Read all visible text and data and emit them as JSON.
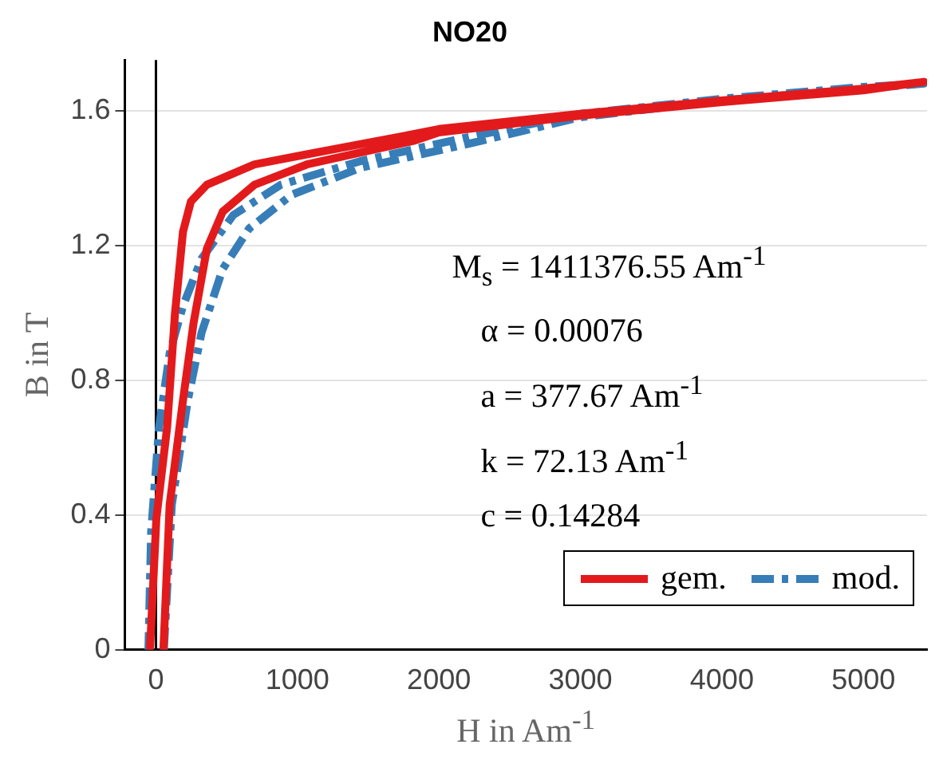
{
  "chart_data": {
    "type": "line",
    "title": "NO20",
    "xlabel": "H in Am$^{-1}$",
    "ylabel": "B in T",
    "xlim": [
      -220,
      5450
    ],
    "xticks": [
      0,
      1000,
      2000,
      3000,
      4000,
      5000
    ],
    "ylim": [
      0,
      1.75
    ],
    "yticks": [
      0,
      0.4,
      0.8,
      1.2,
      1.6
    ],
    "grid": "y",
    "legend": "bottom right",
    "marker": "none",
    "ref_lines": [
      {
        "axis": "x",
        "value": 0,
        "color": "#000000"
      }
    ],
    "annotations": [
      "M$_{s}$ = 1411376.55 Am$^{-1}$",
      "α = 0.00076",
      "a = 377.67 Am$^{-1}$",
      "k = 72.13 Am$^{-1}$",
      "c = 0.14284"
    ],
    "series": [
      {
        "name": "gem.",
        "color": "#e31a1c",
        "line_style": "solid",
        "x": [
          53,
          97,
          191,
          266,
          360,
          472,
          697,
          1067,
          1820,
          2000,
          3000,
          4000,
          5000,
          5430,
          5000,
          4000,
          3000,
          2000,
          1820,
          1067,
          697,
          360,
          247,
          191,
          135,
          79,
          3,
          -42
        ],
        "values": [
          0,
          0.43,
          0.74,
          0.97,
          1.19,
          1.3,
          1.38,
          1.44,
          1.51,
          1.535,
          1.585,
          1.625,
          1.66,
          1.685,
          1.665,
          1.63,
          1.59,
          1.545,
          1.53,
          1.47,
          1.44,
          1.38,
          1.33,
          1.24,
          1.0,
          0.66,
          0.39,
          0
        ]
      },
      {
        "name": "mod.",
        "color": "#377eb8",
        "line_style": "dashed",
        "x": [
          56,
          112,
          225,
          322,
          472,
          659,
          959,
          1446,
          2195,
          3000,
          4000,
          5000,
          5430,
          5000,
          4000,
          3000,
          2195,
          1446,
          884,
          547,
          322,
          191,
          97,
          22,
          -34,
          -53
        ],
        "values": [
          0,
          0.43,
          0.74,
          0.94,
          1.13,
          1.25,
          1.35,
          1.43,
          1.5,
          1.58,
          1.63,
          1.665,
          1.68,
          1.67,
          1.635,
          1.59,
          1.52,
          1.45,
          1.38,
          1.29,
          1.16,
          1.02,
          0.88,
          0.66,
          0.35,
          0
        ]
      }
    ]
  }
}
